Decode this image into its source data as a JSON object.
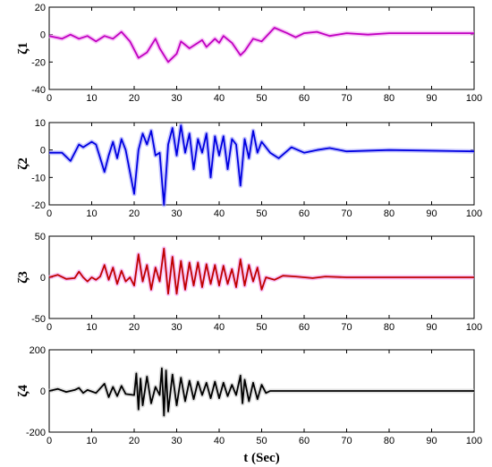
{
  "chart_data": [
    {
      "type": "line",
      "ylabel": "ζ1",
      "color": "#c000c0",
      "glow": "#f4a0f4",
      "x": [
        0,
        3,
        5,
        7,
        9,
        11,
        13,
        15,
        17,
        19,
        21,
        23,
        25,
        26,
        28,
        30,
        31,
        33,
        35,
        36,
        37,
        39,
        40,
        41,
        43,
        45,
        46,
        48,
        50,
        53,
        56,
        58,
        60,
        63,
        66,
        70,
        75,
        80,
        90,
        100
      ],
      "values": [
        -1,
        -3,
        0,
        -3,
        -1,
        -5,
        -1,
        -3,
        2,
        -5,
        -17,
        -13,
        -3,
        -10,
        -20,
        -14,
        -5,
        -10,
        -6,
        -4,
        -9,
        -3,
        -6,
        -1,
        -6,
        -15,
        -12,
        -3,
        -5,
        5,
        1,
        -2,
        1,
        2,
        -1,
        1,
        0,
        1,
        1,
        1
      ],
      "xlim": [
        0,
        100
      ],
      "xticks": [
        0,
        10,
        20,
        30,
        40,
        50,
        60,
        70,
        80,
        90,
        100
      ],
      "ylim": [
        -40,
        20
      ],
      "yticks": [
        -40,
        -20,
        0,
        20
      ]
    },
    {
      "type": "line",
      "ylabel": "ζ2",
      "color": "#0000e0",
      "glow": "#a0a0ff",
      "x": [
        0,
        3,
        5,
        7,
        8,
        10,
        11,
        13,
        14,
        15,
        16,
        17,
        18,
        20,
        21,
        22,
        23,
        24,
        25,
        26,
        27,
        28,
        29,
        30,
        31,
        32,
        33,
        34,
        35,
        36,
        37,
        38,
        39,
        40,
        41,
        42,
        43,
        44,
        45,
        46,
        47,
        48,
        49,
        50,
        52,
        54,
        57,
        60,
        63,
        66,
        70,
        80,
        100
      ],
      "values": [
        -1,
        -1,
        -4,
        2,
        1,
        3,
        2,
        -8,
        -2,
        3,
        -3,
        4,
        0,
        -16,
        0,
        6,
        2,
        7,
        -2,
        -1,
        -20,
        2,
        8,
        -2,
        9,
        -1,
        6,
        -7,
        4,
        -1,
        6,
        -10,
        5,
        -2,
        5,
        -7,
        4,
        2,
        -13,
        4,
        -3,
        7,
        -1,
        3,
        -1,
        -3,
        1,
        -1,
        0,
        0.7,
        -0.5,
        0,
        -0.5
      ],
      "xlim": [
        0,
        100
      ],
      "xticks": [
        0,
        10,
        20,
        30,
        40,
        50,
        60,
        70,
        80,
        90,
        100
      ],
      "ylim": [
        -20,
        10
      ],
      "yticks": [
        -20,
        -10,
        0,
        10
      ]
    },
    {
      "type": "line",
      "ylabel": "ζ3",
      "color": "#c00000",
      "glow": "#f4a0f4",
      "x": [
        0,
        2,
        4,
        6,
        7,
        8,
        9,
        10,
        11,
        12,
        13,
        14,
        15,
        16,
        17,
        18,
        19,
        20,
        21,
        22,
        23,
        24,
        25,
        26,
        27,
        28,
        29,
        30,
        31,
        32,
        33,
        34,
        35,
        36,
        37,
        38,
        39,
        40,
        41,
        42,
        43,
        44,
        45,
        46,
        47,
        48,
        49,
        50,
        51,
        53,
        55,
        58,
        62,
        65,
        70,
        100
      ],
      "values": [
        0,
        3,
        -2,
        -1,
        7,
        0,
        -5,
        0,
        -3,
        1,
        15,
        -3,
        12,
        -8,
        8,
        -5,
        0,
        -10,
        28,
        -5,
        15,
        -15,
        12,
        -5,
        35,
        -20,
        25,
        -20,
        20,
        -15,
        18,
        -10,
        18,
        -12,
        16,
        -8,
        15,
        -10,
        14,
        -8,
        10,
        -12,
        22,
        -10,
        15,
        -5,
        12,
        -15,
        0,
        -3,
        2,
        1,
        -1,
        1,
        0,
        0
      ],
      "xlim": [
        0,
        100
      ],
      "xticks": [
        0,
        10,
        20,
        30,
        40,
        50,
        60,
        70,
        80,
        90,
        100
      ],
      "ylim": [
        -50,
        50
      ],
      "yticks": [
        -50,
        0,
        50
      ]
    },
    {
      "type": "line",
      "ylabel": "ζ4",
      "xlabel": "t (Sec)",
      "color": "#000000",
      "glow": "#cccccc",
      "x": [
        0,
        2,
        4,
        6,
        7,
        8,
        9,
        11,
        13,
        14,
        15,
        16,
        17,
        18,
        20,
        20.5,
        21,
        21.5,
        22,
        23,
        24,
        25,
        26,
        26.5,
        27,
        27.5,
        28,
        29,
        30,
        31,
        32,
        33,
        34,
        35,
        36,
        37,
        38,
        39,
        40,
        41,
        42,
        43,
        44,
        45,
        45.5,
        46,
        47,
        48,
        49,
        50,
        51,
        52,
        100
      ],
      "values": [
        0,
        10,
        -5,
        5,
        15,
        -10,
        5,
        -10,
        35,
        -30,
        20,
        -25,
        25,
        -15,
        -20,
        85,
        -90,
        60,
        -70,
        70,
        -60,
        20,
        -20,
        110,
        -120,
        100,
        -100,
        80,
        -70,
        65,
        -50,
        50,
        -40,
        45,
        -20,
        40,
        -35,
        45,
        -35,
        40,
        -25,
        30,
        -20,
        75,
        -60,
        55,
        -50,
        40,
        -40,
        30,
        -10,
        0,
        0
      ],
      "xlim": [
        0,
        100
      ],
      "xticks": [
        0,
        10,
        20,
        30,
        40,
        50,
        60,
        70,
        80,
        90,
        100
      ],
      "ylim": [
        -200,
        200
      ],
      "yticks": [
        -200,
        0,
        200
      ]
    }
  ]
}
